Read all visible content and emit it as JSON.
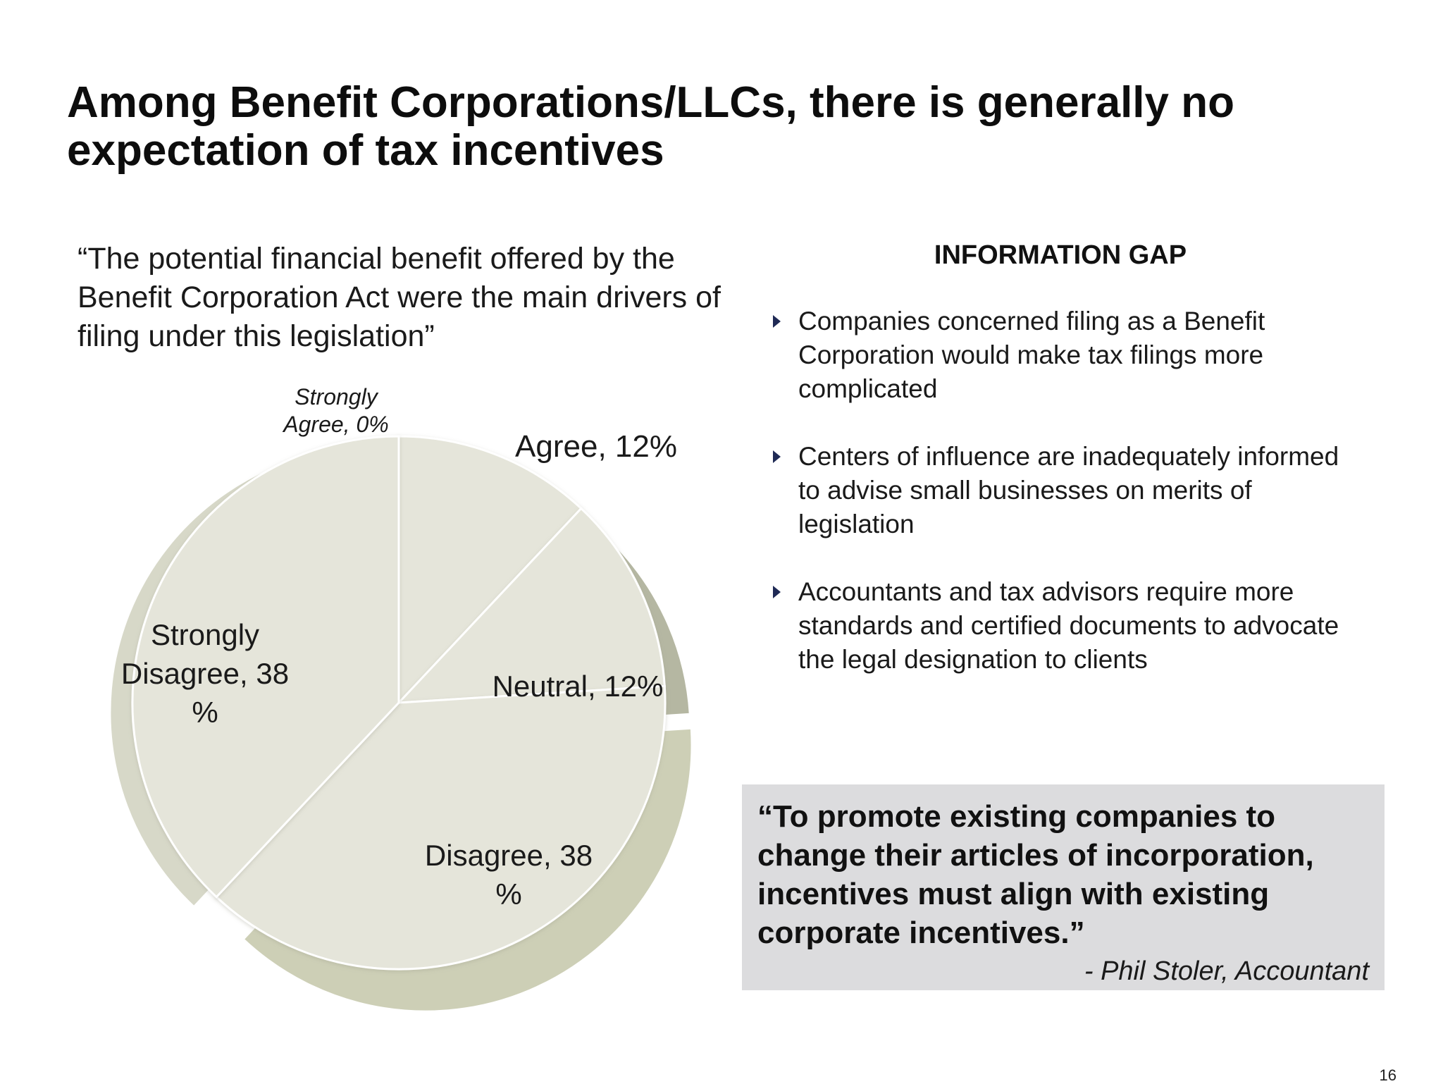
{
  "title_line1": "Among Benefit Corporations/LLCs, there is generally no",
  "title_line2": "expectation of tax incentives",
  "survey_quote": "“The potential financial benefit offered by the Benefit Corporation Act were the main drivers of filing under this legislation”",
  "info_gap": {
    "heading": "INFORMATION GAP",
    "items": [
      "Companies concerned filing as a Benefit Corporation would make tax filings more complicated",
      "Centers of influence are inadequately informed to advise small businesses on merits of legislation",
      "Accountants and tax advisors require more standards and certified documents to advocate the legal designation to clients"
    ]
  },
  "quote_box": {
    "text": "“To promote existing companies to change their articles of incorporation, incentives must align with existing corporate incentives.”",
    "attribution": "- Phil Stoler, Accountant",
    "background": "#dcdcde"
  },
  "page_number": "16",
  "chart_data": {
    "type": "pie",
    "categories": [
      "Strongly Agree",
      "Agree",
      "Neutral",
      "Disagree",
      "Strongly Disagree"
    ],
    "values": [
      0,
      12,
      12,
      38,
      38
    ],
    "unit": "%",
    "labels": {
      "strongly_agree": [
        "Strongly",
        "Agree, 0%"
      ],
      "agree": [
        "Agree, 12%"
      ],
      "neutral": [
        "Neutral, 12%"
      ],
      "disagree": [
        "Disagree, 38",
        "%"
      ],
      "strongly_disagree": [
        "Strongly",
        "Disagree, 38",
        "%"
      ]
    },
    "colors": {
      "face": "#e5e5da",
      "agree_edge": "#a9ab95",
      "neutral_edge": "#b5b7a2",
      "disagree_edge": "#cdcfb6",
      "strongly_disagree_edge": "#d7d8c8"
    }
  }
}
